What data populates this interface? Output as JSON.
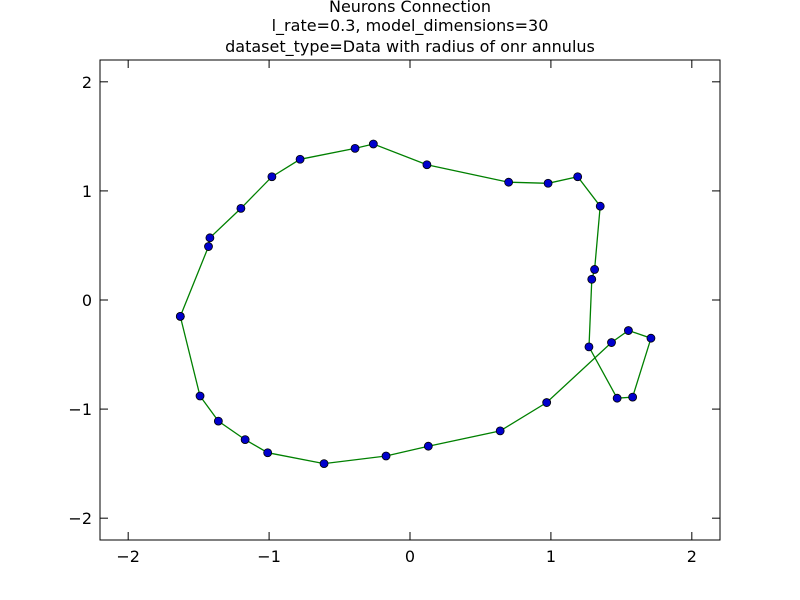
{
  "chart_data": {
    "type": "line",
    "title_lines": [
      "Neurons Connection",
      "l_rate=0.3, model_dimensions=30",
      "dataset_type=Data with radius of onr annulus"
    ],
    "xlabel": "",
    "ylabel": "",
    "xlim": [
      -2.2,
      2.2
    ],
    "ylim": [
      -2.2,
      2.2
    ],
    "x_ticks": [
      -2,
      -1,
      0,
      1,
      2
    ],
    "y_ticks": [
      -2,
      -1,
      0,
      1,
      2
    ],
    "x_tick_labels": [
      "−2",
      "−1",
      "0",
      "1",
      "2"
    ],
    "y_tick_labels": [
      "−2",
      "−1",
      "0",
      "1",
      "2"
    ],
    "grid": false,
    "line_color": "#008000",
    "marker_color": "#0000cc",
    "marker_edge_color": "#000000",
    "points": [
      {
        "x": -1.63,
        "y": -0.15
      },
      {
        "x": -1.43,
        "y": 0.49
      },
      {
        "x": -1.42,
        "y": 0.57
      },
      {
        "x": -1.2,
        "y": 0.84
      },
      {
        "x": -0.98,
        "y": 1.13
      },
      {
        "x": -0.78,
        "y": 1.29
      },
      {
        "x": -0.39,
        "y": 1.39
      },
      {
        "x": -0.26,
        "y": 1.43
      },
      {
        "x": 0.12,
        "y": 1.24
      },
      {
        "x": 0.7,
        "y": 1.08
      },
      {
        "x": 0.98,
        "y": 1.07
      },
      {
        "x": 1.19,
        "y": 1.13
      },
      {
        "x": 1.35,
        "y": 0.86
      },
      {
        "x": 1.31,
        "y": 0.28
      },
      {
        "x": 1.29,
        "y": 0.19
      },
      {
        "x": 1.27,
        "y": -0.43
      },
      {
        "x": 1.47,
        "y": -0.9
      },
      {
        "x": 1.58,
        "y": -0.89
      },
      {
        "x": 1.71,
        "y": -0.35
      },
      {
        "x": 1.55,
        "y": -0.28
      },
      {
        "x": 1.43,
        "y": -0.39
      },
      {
        "x": 0.97,
        "y": -0.94
      },
      {
        "x": 0.64,
        "y": -1.2
      },
      {
        "x": 0.13,
        "y": -1.34
      },
      {
        "x": -0.17,
        "y": -1.43
      },
      {
        "x": -0.61,
        "y": -1.5
      },
      {
        "x": -1.01,
        "y": -1.4
      },
      {
        "x": -1.17,
        "y": -1.28
      },
      {
        "x": -1.36,
        "y": -1.11
      },
      {
        "x": -1.49,
        "y": -0.88
      },
      {
        "x": -1.63,
        "y": -0.15
      }
    ]
  }
}
